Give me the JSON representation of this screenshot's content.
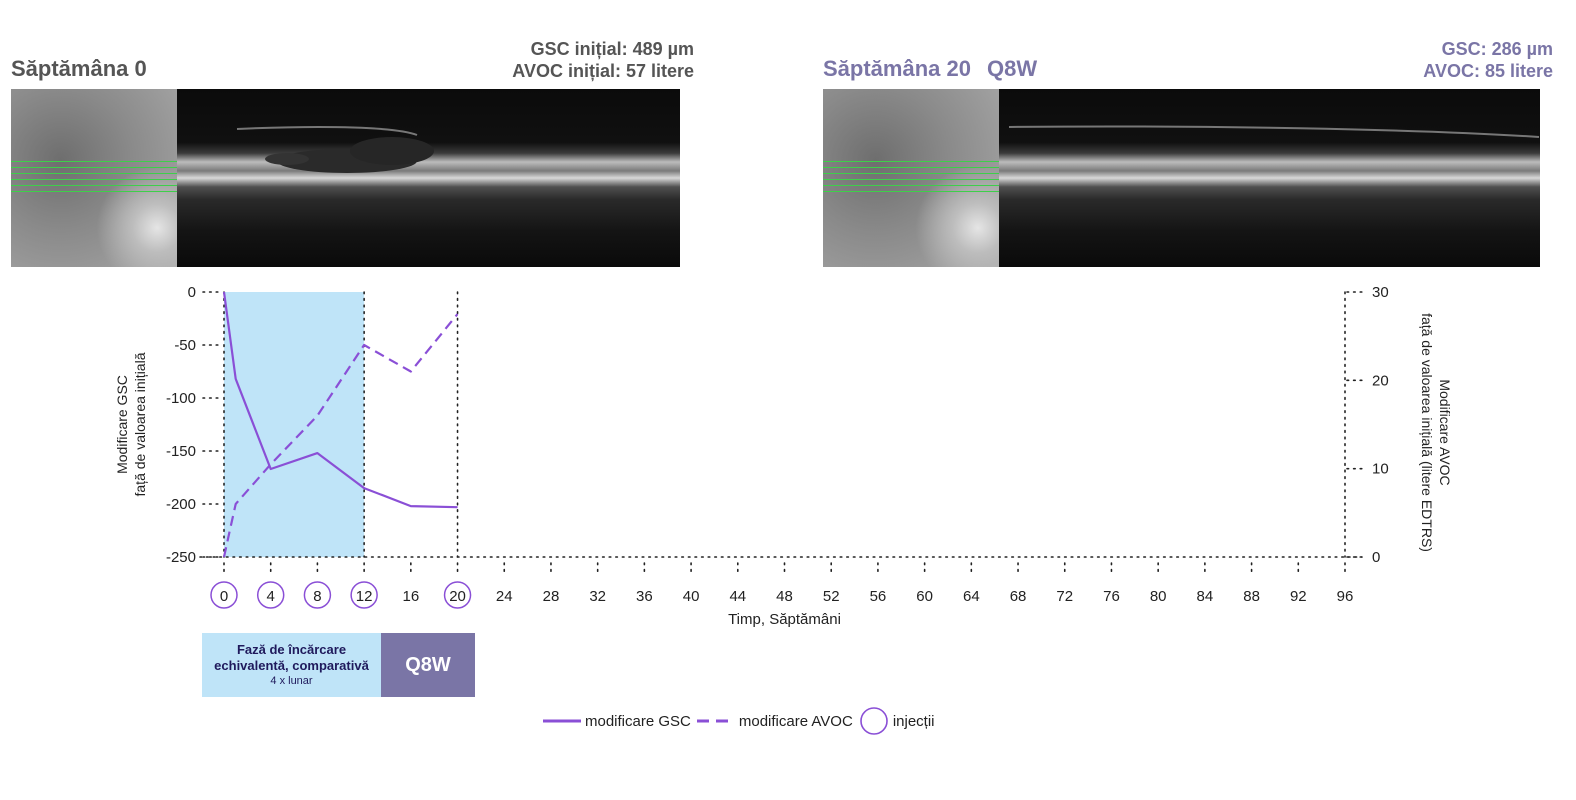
{
  "panels": {
    "left": {
      "title": "Săptămâna 0",
      "stats": [
        "GSC inițial: 489 µm",
        "AVOC inițial: 57 litere"
      ]
    },
    "right": {
      "title": "Săptămâna 20",
      "regimen": "Q8W",
      "stats": [
        "GSC: 286 µm",
        "AVOC: 85 litere"
      ]
    }
  },
  "colors": {
    "series": "#8a4fd6",
    "shade": "#bfe4f8",
    "q8w": "#7a75a6",
    "axis": "#222222"
  },
  "chart_data": {
    "type": "line",
    "xlabel": "Timp, Săptămâni",
    "ylabel_left": [
      "Modificare GSC",
      "față de valoarea inițială"
    ],
    "ylabel_right": [
      "Modificare AVOC",
      "față de valoarea inițială (litere EDTRS)"
    ],
    "x_ticks": [
      0,
      4,
      8,
      12,
      16,
      20,
      24,
      28,
      32,
      36,
      40,
      44,
      48,
      52,
      56,
      60,
      64,
      68,
      72,
      76,
      80,
      84,
      88,
      92,
      96
    ],
    "xlim": [
      0,
      96
    ],
    "ylim_left": [
      -250,
      0
    ],
    "yticks_left": [
      0,
      -50,
      -100,
      -150,
      -200,
      -250
    ],
    "ylim_right": [
      0,
      30
    ],
    "yticks_right": [
      30,
      20,
      10,
      0
    ],
    "vertical_dotted_lines": [
      0,
      12,
      20,
      96
    ],
    "shaded_region": [
      0,
      12
    ],
    "injections": [
      0,
      4,
      8,
      12,
      20
    ],
    "series": [
      {
        "name": "modificare GSC",
        "axis": "left",
        "style": "solid",
        "x": [
          0,
          1,
          4,
          8,
          12,
          16,
          20
        ],
        "y": [
          0,
          -82,
          -167,
          -152,
          -185,
          -202,
          -203
        ]
      },
      {
        "name": "modificare AVOC",
        "axis": "right",
        "style": "dashed",
        "x": [
          0,
          0.5,
          1,
          4,
          8,
          12,
          16,
          20
        ],
        "y": [
          0,
          3,
          6,
          10.5,
          16,
          24,
          21,
          27.5
        ]
      }
    ]
  },
  "phases": {
    "loading_title": "Fază de încărcare echivalentă, comparativă",
    "loading_subtitle": "4 x lunar",
    "q8w_label": "Q8W"
  },
  "legend": {
    "gsc": "modificare GSC",
    "avoc": "modificare AVOC",
    "injections": "injecții"
  }
}
